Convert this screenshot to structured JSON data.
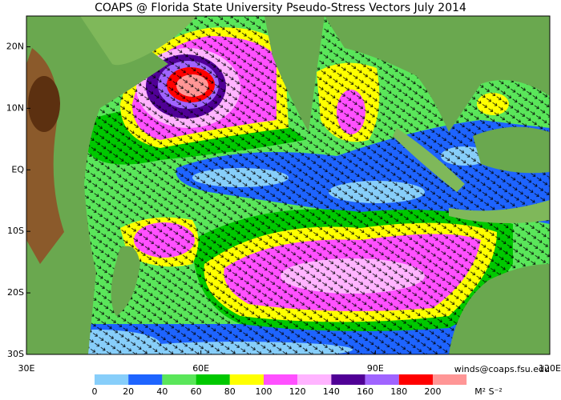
{
  "title": "COAPS @ Florida State University Pseudo-Stress Vectors July 2014",
  "map": {
    "lonlim": [
      30,
      120
    ],
    "latlim": [
      -30,
      25
    ],
    "lon_ticks": [
      {
        "value": 30,
        "label": "30E"
      },
      {
        "value": 60,
        "label": "60E"
      },
      {
        "value": 90,
        "label": "90E"
      },
      {
        "value": 120,
        "label": "120E"
      }
    ],
    "lat_ticks": [
      {
        "value": 20,
        "label": "20N"
      },
      {
        "value": 10,
        "label": "10N"
      },
      {
        "value": 0,
        "label": "EQ"
      },
      {
        "value": -10,
        "label": "10S"
      },
      {
        "value": -20,
        "label": "20S"
      },
      {
        "value": -30,
        "label": "30S"
      }
    ]
  },
  "credit": "winds@coaps.fsu.edu",
  "colorbar": {
    "levels": [
      0,
      20,
      40,
      60,
      80,
      100,
      120,
      140,
      160,
      180,
      200
    ],
    "colors": [
      "#87cefa",
      "#1e64ff",
      "#5ae65a",
      "#00c800",
      "#ffff00",
      "#ff50ff",
      "#ffb4ff",
      "#500096",
      "#a064ff",
      "#ff0000",
      "#ff9696"
    ],
    "unit": "M² S⁻²"
  }
}
